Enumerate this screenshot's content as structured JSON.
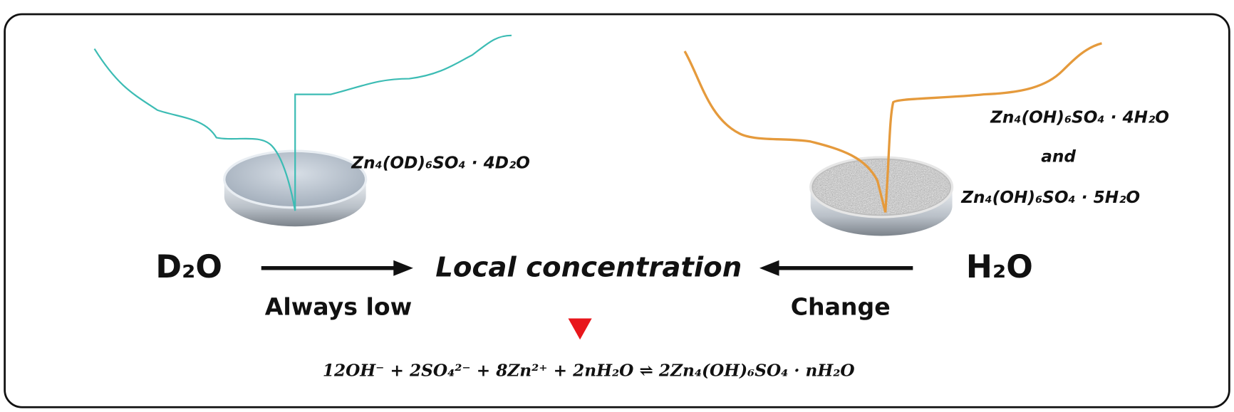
{
  "left": {
    "solvent": "D₂O",
    "product": "Zn₄(OD)₆SO₄ · 4D₂O",
    "arrow_label": "Always low"
  },
  "center": {
    "label": "Local concentration",
    "equation": "12OH⁻ + 2SO₄²⁻ + 8Zn²⁺ + 2nH₂O ⇌ 2Zn₄(OH)₆SO₄ · nH₂O"
  },
  "right": {
    "solvent": "H₂O",
    "product_1": "Zn₄(OH)₆SO₄ · 4H₂O",
    "connector": "and",
    "product_2": "Zn₄(OH)₆SO₄ · 5H₂O",
    "arrow_label": "Change"
  }
}
